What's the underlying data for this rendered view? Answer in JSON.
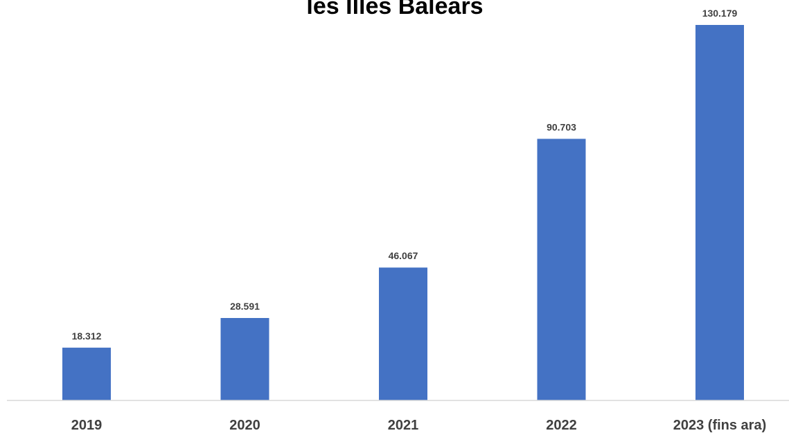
{
  "chart_data": {
    "type": "bar",
    "title": "les Illes Balears",
    "categories": [
      "2019",
      "2020",
      "2021",
      "2022",
      "2023 (fins ara)"
    ],
    "values": [
      18312,
      28591,
      46067,
      90703,
      130179
    ],
    "value_labels": [
      "18.312",
      "28.591",
      "46.067",
      "90.703",
      "130.179"
    ],
    "xlabel": "",
    "ylabel": "",
    "ylim": [
      0,
      150000
    ],
    "grid": false,
    "legend": "none",
    "bar_color": "#4472C4",
    "axis_color": "#D9D9D9"
  }
}
